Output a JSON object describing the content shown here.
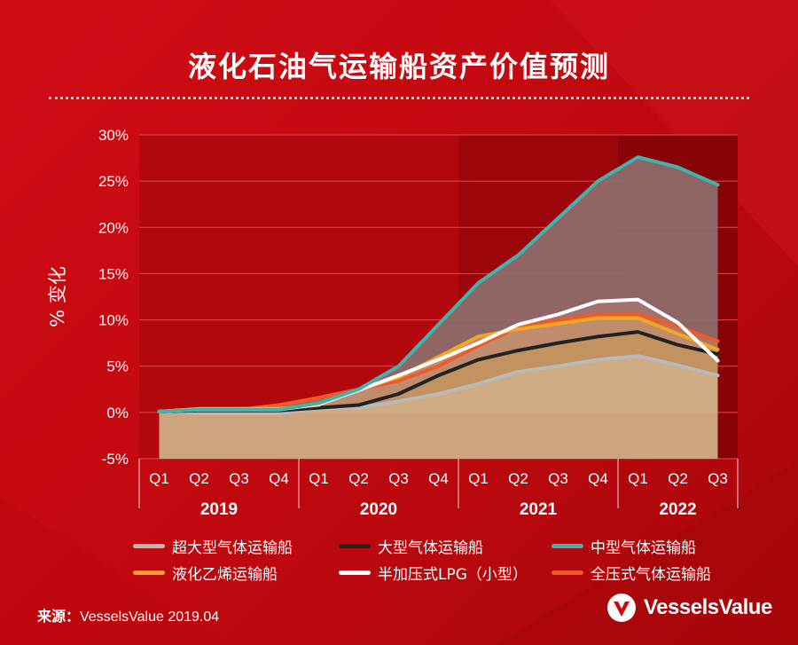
{
  "title": "液化石油气运输船资产价值预测",
  "source": {
    "label": "来源：",
    "text": "VesselsValue 2019.04"
  },
  "logo": {
    "text": "VesselsValue",
    "icon": "vesselsvalue-logo-icon"
  },
  "colors": {
    "background": "#c8090f",
    "plot_light": "#b2070c",
    "plot_dark": "#880308",
    "grid": "#e24a50",
    "fill_teal": "#8e6a6a",
    "fill_white": "#a6766e",
    "fill_orange": "#c28f6e",
    "fill_gray": "#d0ad86"
  },
  "chart_data": {
    "type": "line",
    "title": "液化石油气运输船资产价值预测",
    "ylabel": "% 变化",
    "xlabel": "",
    "ylim": [
      -5,
      30
    ],
    "yticks": [
      -5,
      0,
      5,
      10,
      15,
      20,
      25,
      30
    ],
    "ytick_labels": [
      "-5%",
      "0%",
      "5%",
      "10%",
      "15%",
      "20%",
      "25%",
      "30%"
    ],
    "quarters": [
      "Q1",
      "Q2",
      "Q3",
      "Q4",
      "Q1",
      "Q2",
      "Q3",
      "Q4",
      "Q1",
      "Q2",
      "Q3",
      "Q4",
      "Q1",
      "Q2",
      "Q3"
    ],
    "years": [
      {
        "label": "2019",
        "count": 4
      },
      {
        "label": "2020",
        "count": 4
      },
      {
        "label": "2021",
        "count": 4
      },
      {
        "label": "2022",
        "count": 3
      }
    ],
    "forecast_shading_start_index": 8,
    "forecast_darker_start_index": 12,
    "grid": true,
    "legend_position": "bottom",
    "series": [
      {
        "name": "超大型气体运输船",
        "color": "#b9b9b9",
        "values": [
          0.1,
          -0.1,
          -0.1,
          -0.1,
          0.4,
          0.5,
          1.2,
          2.0,
          3.1,
          4.4,
          5.0,
          5.7,
          6.1,
          5.1,
          4.0
        ]
      },
      {
        "name": "大型气体运输船",
        "color": "#222222",
        "values": [
          0.1,
          0.2,
          0.2,
          0.2,
          0.5,
          0.8,
          2.0,
          4.0,
          5.7,
          6.7,
          7.5,
          8.2,
          8.7,
          7.3,
          6.3
        ]
      },
      {
        "name": "中型气体运输船",
        "color": "#3fb3ad",
        "values": [
          0.1,
          0.3,
          0.3,
          0.3,
          1.0,
          2.5,
          5.0,
          9.5,
          14.0,
          17.0,
          21.0,
          25.0,
          27.6,
          26.5,
          24.6
        ]
      },
      {
        "name": "液化乙烯运输船",
        "color": "#f4a623",
        "values": [
          0.1,
          0.4,
          0.4,
          0.4,
          0.8,
          2.5,
          3.8,
          6.0,
          8.2,
          9.0,
          9.6,
          10.2,
          10.2,
          8.5,
          6.8
        ]
      },
      {
        "name": "半加压式LPG（小型）",
        "color": "#ffffff",
        "values": [
          0.1,
          0.3,
          0.3,
          0.3,
          0.9,
          2.4,
          4.0,
          5.7,
          7.5,
          9.5,
          10.6,
          12.0,
          12.2,
          9.7,
          5.6
        ]
      },
      {
        "name": "全压式气体运输船",
        "color": "#f05a28",
        "values": [
          0.1,
          0.3,
          0.3,
          0.8,
          1.6,
          2.5,
          3.4,
          5.0,
          7.2,
          9.2,
          10.0,
          10.6,
          10.6,
          9.3,
          7.7
        ]
      }
    ]
  }
}
